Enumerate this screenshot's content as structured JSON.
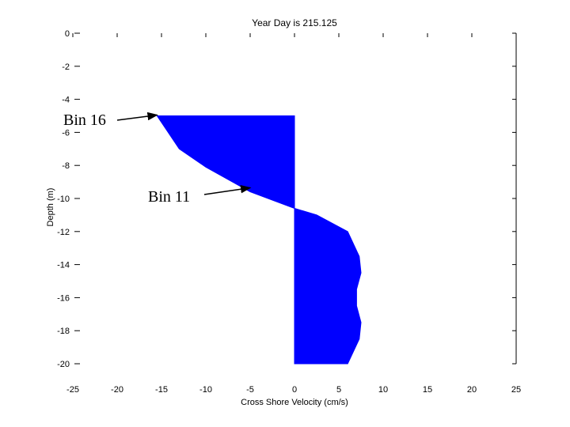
{
  "chart_data": {
    "type": "area",
    "title": "Year Day is 215.125",
    "xlabel": "Cross Shore Velocity (cm/s)",
    "ylabel": "Depth (m)",
    "xlim": [
      -25,
      25
    ],
    "ylim": [
      -20,
      0
    ],
    "xticks": [
      -25,
      -20,
      -15,
      -10,
      -5,
      0,
      5,
      10,
      15,
      20,
      25
    ],
    "yticks": [
      0,
      -2,
      -4,
      -6,
      -8,
      -10,
      -12,
      -14,
      -16,
      -18,
      -20
    ],
    "grid": false,
    "fill_color": "#0000ff",
    "baseline_x": 0,
    "series": [
      {
        "x": [
          -15.5,
          -13,
          -10,
          -5,
          0,
          2.5,
          6,
          7.3,
          7.5,
          7,
          7,
          7.5,
          7.3,
          6
        ],
        "y": [
          -5,
          -7,
          -8.1,
          -9.6,
          -10.6,
          -11,
          -12,
          -13.5,
          -14.5,
          -15.5,
          -16.5,
          -17.5,
          -18.5,
          -20
        ]
      }
    ],
    "annotations": [
      {
        "text": "Bin 16",
        "point": [
          -15.5,
          -5
        ]
      },
      {
        "text": "Bin 11",
        "point": [
          -5,
          -9.4
        ]
      }
    ]
  }
}
